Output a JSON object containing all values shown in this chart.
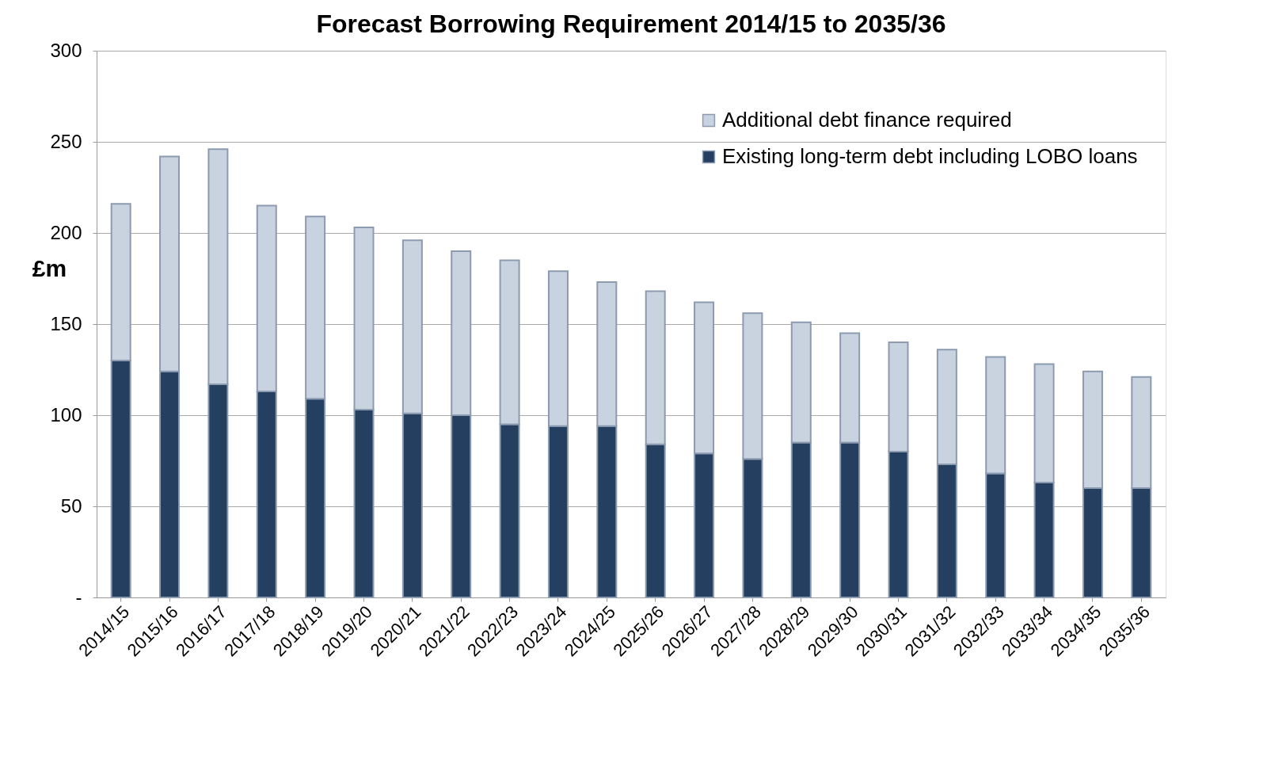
{
  "chart_data": {
    "type": "bar",
    "title": "Forecast Borrowing Requirement 2014/15 to 2035/36",
    "ylabel": "£m",
    "categories": [
      "2014/15",
      "2015/16",
      "2016/17",
      "2017/18",
      "2018/19",
      "2019/20",
      "2020/21",
      "2021/22",
      "2022/23",
      "2023/24",
      "2024/25",
      "2025/26",
      "2026/27",
      "2027/28",
      "2028/29",
      "2029/30",
      "2030/31",
      "2031/32",
      "2032/33",
      "2033/34",
      "2034/35",
      "2035/36"
    ],
    "stacked": true,
    "series": [
      {
        "name": "Existing long-term debt including LOBO loans",
        "color": "#243f60",
        "values": [
          130,
          124,
          117,
          113,
          109,
          103,
          101,
          100,
          95,
          94,
          94,
          84,
          79,
          76,
          85,
          85,
          80,
          73,
          68,
          63,
          60,
          60
        ]
      },
      {
        "name": "Additional debt finance required",
        "color": "#c9d3e0",
        "values": [
          86,
          118,
          129,
          102,
          100,
          100,
          95,
          90,
          90,
          85,
          79,
          84,
          83,
          80,
          66,
          60,
          60,
          63,
          64,
          65,
          64,
          61
        ]
      }
    ],
    "ylim": [
      0,
      300
    ],
    "yticks": [
      {
        "value": 0,
        "label": "-"
      },
      50,
      100,
      150,
      200,
      250,
      300
    ],
    "grid": "y",
    "legend": "top right"
  }
}
